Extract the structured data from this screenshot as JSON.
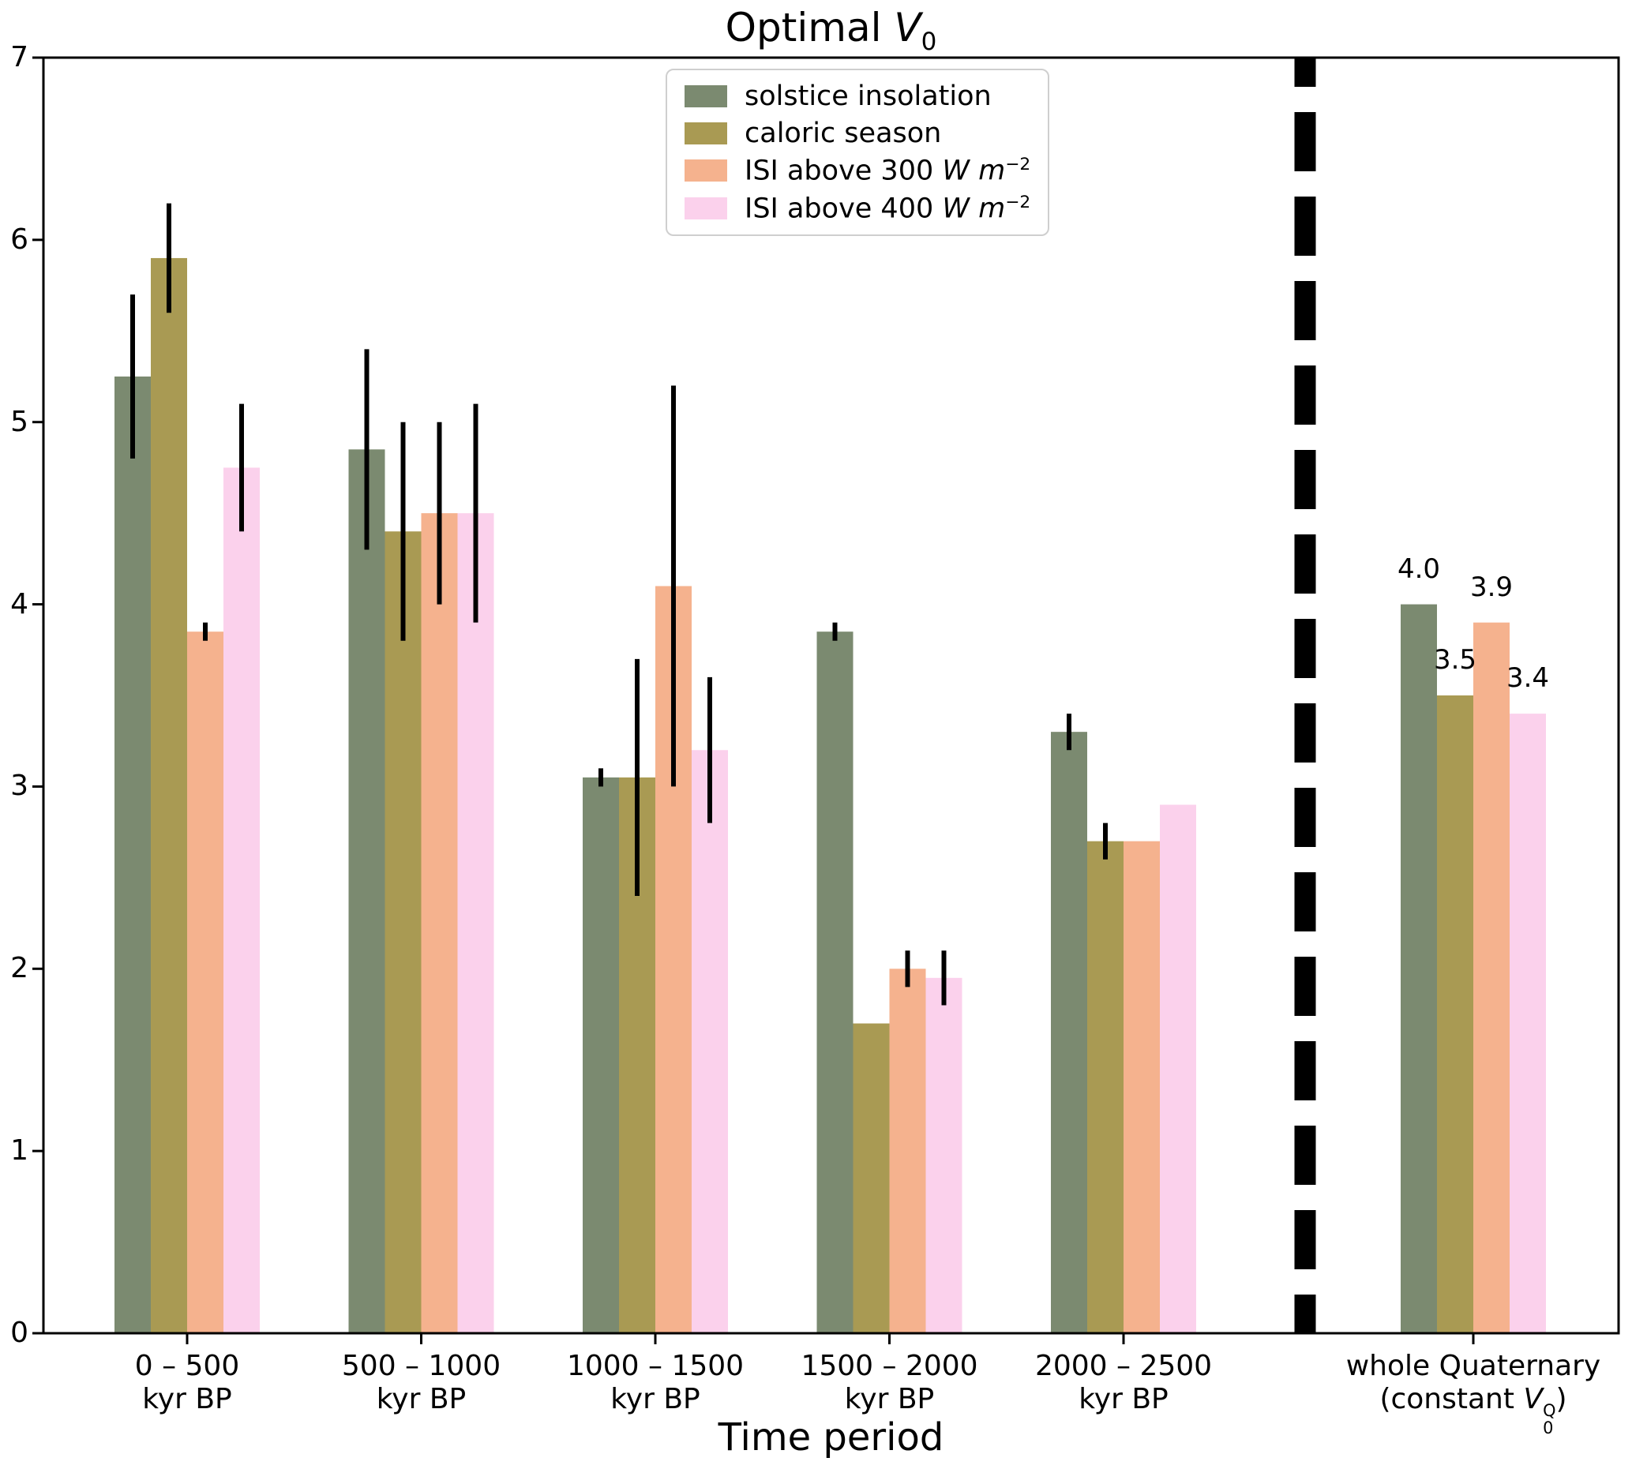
{
  "figure": {
    "title": {
      "prefix": "Optimal ",
      "var": "V",
      "sub": "0"
    },
    "xlabel": "Time period"
  },
  "chart_data": {
    "type": "bar",
    "title": "Optimal V_0",
    "xlabel": "Time period",
    "ylabel": "",
    "ylim": [
      0,
      7
    ],
    "yticks": [
      "0",
      "1",
      "2",
      "3",
      "4",
      "5",
      "6",
      "7"
    ],
    "grid": false,
    "legend_position": "upper center",
    "categories": [
      {
        "line1": "0 – 500",
        "line2": "kyr BP"
      },
      {
        "line1": "500 – 1000",
        "line2": "kyr BP"
      },
      {
        "line1": "1000 – 1500",
        "line2": "kyr BP"
      },
      {
        "line1": "1500 – 2000",
        "line2": "kyr BP"
      },
      {
        "line1": "2000 – 2500",
        "line2": "kyr BP"
      },
      {
        "line1": "whole Quaternary",
        "line2_math": {
          "pre": "(constant ",
          "var": "V",
          "sub": "0",
          "sup": "Q",
          "post": ")"
        }
      }
    ],
    "series": [
      {
        "label_parts": {
          "text": "solstice insolation"
        },
        "color": "#7b8a70",
        "values": [
          5.25,
          4.85,
          3.05,
          3.85,
          3.3,
          4.0
        ],
        "errors": [
          [
            4.8,
            5.7
          ],
          [
            4.3,
            5.4
          ],
          [
            3.0,
            3.1
          ],
          [
            3.8,
            3.9
          ],
          [
            3.2,
            3.4
          ],
          null
        ]
      },
      {
        "label_parts": {
          "text": "caloric season"
        },
        "color": "#a99a53",
        "values": [
          5.9,
          4.4,
          3.05,
          1.7,
          2.7,
          3.5
        ],
        "errors": [
          [
            5.6,
            6.2
          ],
          [
            3.8,
            5.0
          ],
          [
            2.4,
            3.7
          ],
          null,
          [
            2.6,
            2.8
          ],
          null
        ]
      },
      {
        "label_parts": {
          "text": "ISI above 300 ",
          "unit": "W m",
          "sup": "−2"
        },
        "color": "#f5b28e",
        "values": [
          3.85,
          4.5,
          4.1,
          2.0,
          2.7,
          3.9
        ],
        "errors": [
          [
            3.8,
            3.9
          ],
          [
            4.0,
            5.0
          ],
          [
            3.0,
            5.2
          ],
          [
            1.9,
            2.1
          ],
          null,
          null
        ]
      },
      {
        "label_parts": {
          "text": "ISI above 400 ",
          "unit": "W m",
          "sup": "−2"
        },
        "color": "#fbd1ec",
        "values": [
          4.75,
          4.5,
          3.2,
          1.95,
          2.9,
          3.4
        ],
        "errors": [
          [
            4.4,
            5.1
          ],
          [
            3.9,
            5.1
          ],
          [
            2.8,
            3.6
          ],
          [
            1.8,
            2.1
          ],
          null,
          null
        ]
      }
    ],
    "bar_labels": {
      "category_index": 5,
      "values": [
        "4.0",
        "3.5",
        "3.9",
        "3.4"
      ]
    },
    "separator": {
      "between_categories": [
        4,
        5
      ],
      "style": "thick black dashed vertical line"
    },
    "colors": {
      "solstice_insolation": "#7b8a70",
      "caloric_season": "#a99a53",
      "isi_above_300": "#f5b28e",
      "isi_above_400": "#fbd1ec",
      "errorbar": "#000000",
      "axis": "#000000",
      "legend_border": "#cfcfcf"
    }
  }
}
